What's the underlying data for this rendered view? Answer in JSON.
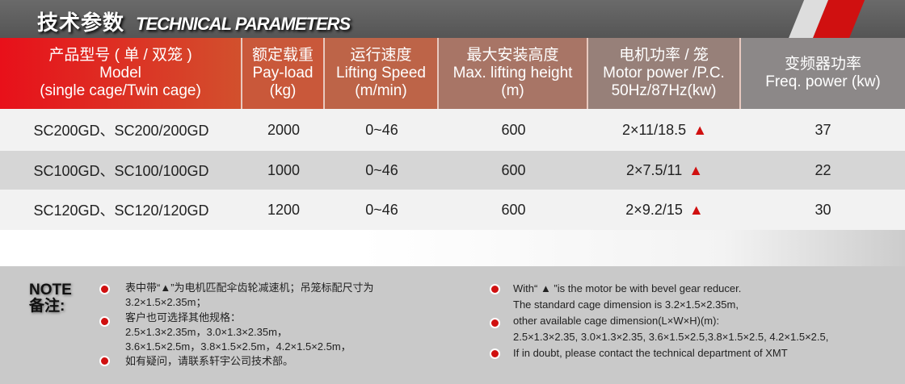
{
  "banner": {
    "title_cn": "技术参数",
    "title_en": "TECHNICAL PARAMETERS"
  },
  "header": [
    {
      "cn": "产品型号 ( 单 / 双笼 )",
      "en1": "Model",
      "en2": "(single cage/Twin cage)"
    },
    {
      "cn": "额定载重",
      "en1": "Pay-load",
      "en2": "(kg)"
    },
    {
      "cn": "运行速度",
      "en1": "Lifting Speed",
      "en2": "(m/min)"
    },
    {
      "cn": "最大安装高度",
      "en1": "Max. lifting height",
      "en2": "(m)"
    },
    {
      "cn": "电机功率 / 笼",
      "en1": "Motor power /P.C.",
      "en2": "50Hz/87Hz(kw)"
    },
    {
      "cn": "变频器功率",
      "en1": "Freq. power (kw)",
      "en2": ""
    }
  ],
  "rows": [
    {
      "model": "SC200GD、SC200/200GD",
      "payload": "2000",
      "speed": "0~46",
      "height": "600",
      "motor": "2×11/18.5",
      "mark": "▲",
      "freq": "37"
    },
    {
      "model": "SC100GD、SC100/100GD",
      "payload": "1000",
      "speed": "0~46",
      "height": "600",
      "motor": "2×7.5/11",
      "mark": "▲",
      "freq": "22"
    },
    {
      "model": "SC120GD、SC120/120GD",
      "payload": "1200",
      "speed": "0~46",
      "height": "600",
      "motor": "2×9.2/15",
      "mark": "▲",
      "freq": "30"
    }
  ],
  "note": {
    "label_en": "NOTE",
    "label_cn": "备注:",
    "cn": [
      "表中带“▲”为电机匹配伞齿轮减速机；吊笼标配尺寸为",
      "3.2×1.5×2.35m；",
      "客户也可选择其他规格：",
      "2.5×1.3×2.35m，3.0×1.3×2.35m，",
      "3.6×1.5×2.5m，3.8×1.5×2.5m，4.2×1.5×2.5m，",
      "如有疑问，请联系轩宇公司技术部。"
    ],
    "en": [
      "With“ ▲ ”is the motor be with bevel gear reducer.",
      "The standard cage dimension is 3.2×1.5×2.35m,",
      "other available cage dimension(L×W×H)(m):",
      "2.5×1.3×2.35, 3.0×1.3×2.35, 3.6×1.5×2.5,3.8×1.5×2.5, 4.2×1.5×2.5,",
      "If in doubt, please contact the technical department of XMT"
    ]
  },
  "colors": {
    "accent": "#d01010",
    "banner": "#585858"
  }
}
